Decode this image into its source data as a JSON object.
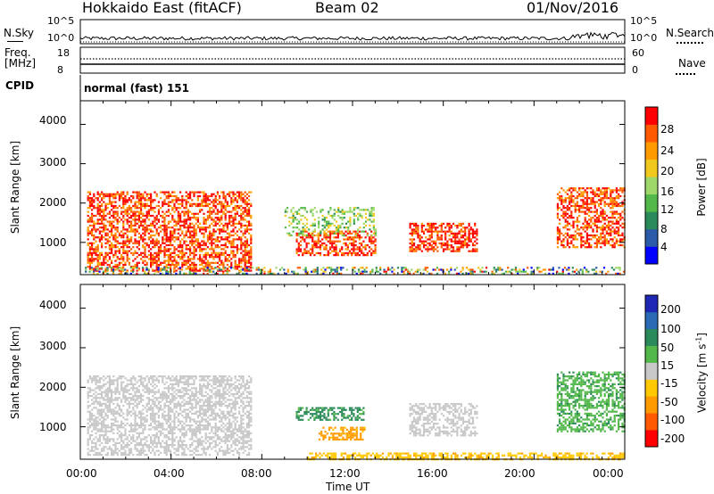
{
  "header": {
    "radar": "Hokkaido East (fitACF)",
    "beam": "Beam 02",
    "date": "01/Nov/2016"
  },
  "strip_nsky": {
    "label": "N.Sky",
    "ticks": [
      "10^5",
      "10^0"
    ],
    "right_label": "N.Search",
    "right_ticks": [
      "10^5",
      "10^0"
    ]
  },
  "strip_freq": {
    "label_line1": "Freq.",
    "label_line2": "[MHz]",
    "ticks": [
      "18",
      "8"
    ],
    "right_label": "Nave",
    "right_ticks": [
      "60",
      "0"
    ]
  },
  "strip_cpid": {
    "label": "CPID",
    "mode_text": "normal (fast) 151"
  },
  "power_panel": {
    "ylabel": "Slant Range [km]",
    "yticks": [
      "4000",
      "3000",
      "2000",
      "1000"
    ],
    "colorbar_label": "Power [dB]",
    "colorbar_ticks": [
      "28",
      "24",
      "20",
      "16",
      "12",
      "8",
      "4"
    ],
    "colors": [
      "#0000ff",
      "#2a5aa8",
      "#2a8a5a",
      "#52b84a",
      "#9ed86a",
      "#f0c81e",
      "#ff9a00",
      "#ff5a00",
      "#ff0000"
    ]
  },
  "velocity_panel": {
    "ylabel": "Slant Range [km]",
    "yticks": [
      "4000",
      "3000",
      "2000",
      "1000"
    ],
    "colorbar_label": "Velocity [m s",
    "colorbar_label_sup": "-1",
    "colorbar_label_end": "]",
    "colorbar_ticks": [
      "200",
      "100",
      "50",
      "15",
      "-15",
      "-50",
      "-100",
      "-200"
    ],
    "colors": [
      "#1e28b4",
      "#2a6ab4",
      "#2a8a5a",
      "#52b84a",
      "#c8c8c8",
      "#ffc800",
      "#ff9a00",
      "#ff5a00",
      "#ff0000"
    ]
  },
  "xaxis": {
    "ticks": [
      "00:00",
      "04:00",
      "08:00",
      "12:00",
      "16:00",
      "20:00",
      "00:00"
    ],
    "label": "Time UT"
  },
  "chart_data": [
    {
      "type": "heatmap",
      "title": "Power",
      "xlabel": "Time UT",
      "ylabel": "Slant Range [km]",
      "x_range_hours": [
        0,
        24
      ],
      "ylim": [
        180,
        4600
      ],
      "colorbar": {
        "label": "Power [dB]",
        "range": [
          0,
          30
        ],
        "ticks": [
          4,
          8,
          12,
          16,
          20,
          24,
          28
        ]
      },
      "regions": [
        {
          "t0": 0.3,
          "t1": 7.5,
          "r0": 280,
          "r1": 2300,
          "level": "strong",
          "value_db": 26
        },
        {
          "t0": 9.5,
          "t1": 13.0,
          "r0": 700,
          "r1": 1300,
          "level": "strong",
          "value_db": 27
        },
        {
          "t0": 14.5,
          "t1": 17.5,
          "r0": 800,
          "r1": 1500,
          "level": "strong",
          "value_db": 28
        },
        {
          "t0": 21.0,
          "t1": 24.0,
          "r0": 900,
          "r1": 2400,
          "level": "strong",
          "value_db": 26
        },
        {
          "t0": 9.0,
          "t1": 13.0,
          "r0": 1200,
          "r1": 1900,
          "level": "weak",
          "value_db": 14
        }
      ]
    },
    {
      "type": "heatmap",
      "title": "Velocity",
      "xlabel": "Time UT",
      "ylabel": "Slant Range [km]",
      "x_range_hours": [
        0,
        24
      ],
      "ylim": [
        180,
        4600
      ],
      "colorbar": {
        "label": "Velocity [m s-1]",
        "range": [
          -250,
          250
        ],
        "ticks": [
          200,
          100,
          50,
          15,
          -15,
          -50,
          -100,
          -200
        ]
      },
      "regions": [
        {
          "t0": 0.3,
          "t1": 7.5,
          "r0": 280,
          "r1": 2300,
          "value_ms": 0
        },
        {
          "t0": 10.5,
          "t1": 12.5,
          "r0": 700,
          "r1": 1000,
          "value_ms": -60
        },
        {
          "t0": 9.5,
          "t1": 12.5,
          "r0": 1200,
          "r1": 1500,
          "value_ms": 60
        },
        {
          "t0": 14.5,
          "t1": 17.5,
          "r0": 800,
          "r1": 1600,
          "value_ms": 0
        },
        {
          "t0": 21.0,
          "t1": 24.0,
          "r0": 900,
          "r1": 2400,
          "value_ms": 40
        },
        {
          "t0": 10.0,
          "t1": 24.0,
          "r0": 180,
          "r1": 350,
          "value_ms": -40
        }
      ]
    }
  ]
}
